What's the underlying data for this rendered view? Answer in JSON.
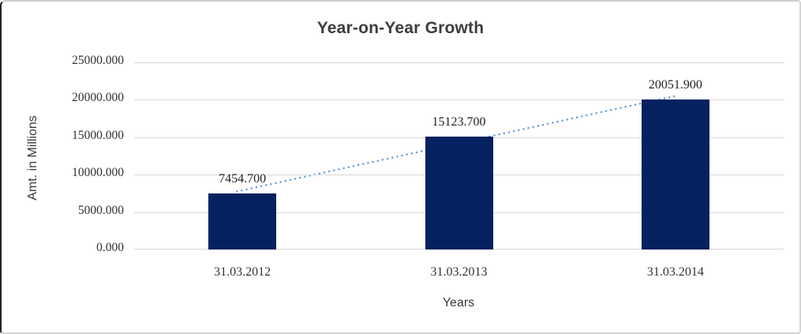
{
  "chart_data": {
    "type": "bar",
    "title": "Year-on-Year Growth",
    "xlabel": "Years",
    "ylabel": "Amt. in Millions",
    "categories": [
      "31.03.2012",
      "31.03.2013",
      "31.03.2014"
    ],
    "values": [
      7454.7,
      15123.7,
      20051.9
    ],
    "data_labels": [
      "7454.700",
      "15123.700",
      "20051.900"
    ],
    "ylim": [
      0,
      25000
    ],
    "ytick_step": 5000,
    "ytick_labels_top_to_bottom": [
      "25000.000",
      "20000.000",
      "15000.000",
      "10000.000",
      "5000.000",
      "0.000"
    ],
    "grid": true,
    "legend_position": "none",
    "trendline": {
      "type": "linear",
      "style": "dotted"
    },
    "colors": {
      "bar": "#05215f",
      "trendline": "#5b9bd5",
      "gridline": "#d7d7d7",
      "title_text": "#3d3d3d",
      "axis_text": "#3a3a3a",
      "number_text": "#303030"
    }
  }
}
